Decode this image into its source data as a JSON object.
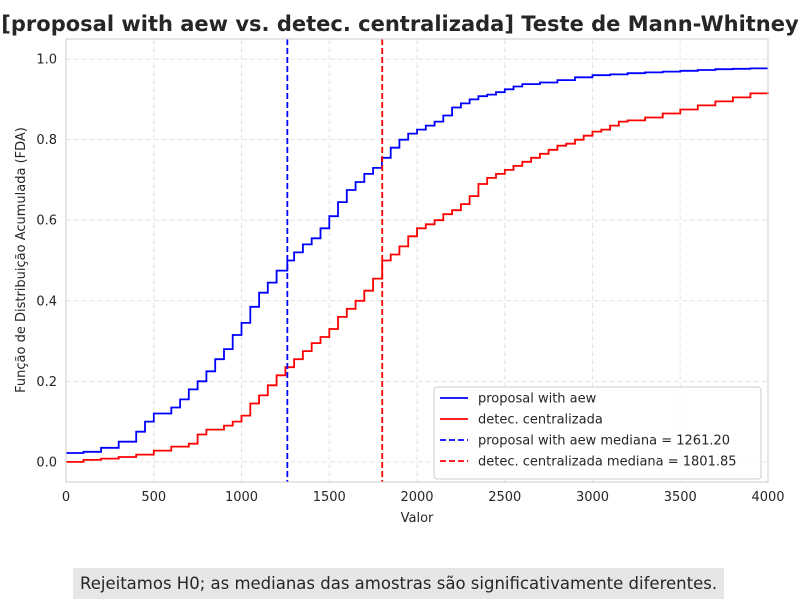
{
  "chart_data": {
    "type": "line",
    "title": "[proposal with aew vs. detec. centralizada] Teste de Mann-Whitney",
    "xlabel": "Valor",
    "ylabel": "Função de Distribuição Acumulada (FDA)",
    "xlim": [
      0,
      4000
    ],
    "ylim": [
      -0.05,
      1.05
    ],
    "x_ticks": [
      0,
      500,
      1000,
      1500,
      2000,
      2500,
      3000,
      3500,
      4000
    ],
    "y_ticks": [
      0.0,
      0.2,
      0.4,
      0.6,
      0.8,
      1.0
    ],
    "x_tick_labels": [
      "0",
      "500",
      "1000",
      "1500",
      "2000",
      "2500",
      "3000",
      "3500",
      "4000"
    ],
    "y_tick_labels": [
      "0.0",
      "0.2",
      "0.4",
      "0.6",
      "0.8",
      "1.0"
    ],
    "grid": true,
    "legend_position": "bottom-right",
    "series": [
      {
        "name": "proposal with aew",
        "color": "#0000ff",
        "style": "step",
        "x": [
          0,
          100,
          200,
          300,
          400,
          450,
          500,
          600,
          650,
          700,
          750,
          800,
          850,
          900,
          950,
          1000,
          1050,
          1100,
          1150,
          1200,
          1261.2,
          1300,
          1350,
          1400,
          1450,
          1500,
          1550,
          1600,
          1650,
          1700,
          1750,
          1800,
          1850,
          1900,
          1950,
          2000,
          2050,
          2100,
          2150,
          2200,
          2250,
          2300,
          2350,
          2400,
          2450,
          2500,
          2550,
          2600,
          2700,
          2800,
          2900,
          3000,
          3100,
          3200,
          3300,
          3400,
          3500,
          3600,
          3700,
          3800,
          3900,
          4000
        ],
        "y": [
          0.022,
          0.025,
          0.035,
          0.05,
          0.075,
          0.1,
          0.12,
          0.135,
          0.155,
          0.18,
          0.2,
          0.225,
          0.255,
          0.28,
          0.315,
          0.345,
          0.385,
          0.42,
          0.445,
          0.475,
          0.5,
          0.52,
          0.54,
          0.555,
          0.58,
          0.61,
          0.645,
          0.675,
          0.695,
          0.715,
          0.73,
          0.755,
          0.78,
          0.8,
          0.815,
          0.825,
          0.835,
          0.845,
          0.86,
          0.88,
          0.89,
          0.9,
          0.908,
          0.912,
          0.918,
          0.925,
          0.932,
          0.938,
          0.942,
          0.948,
          0.955,
          0.96,
          0.962,
          0.965,
          0.967,
          0.969,
          0.971,
          0.973,
          0.975,
          0.976,
          0.977,
          0.977
        ]
      },
      {
        "name": "detec. centralizada",
        "color": "#ff0000",
        "style": "step",
        "x": [
          0,
          100,
          200,
          300,
          400,
          500,
          600,
          700,
          750,
          800,
          900,
          950,
          1000,
          1050,
          1100,
          1150,
          1200,
          1250,
          1300,
          1350,
          1400,
          1450,
          1500,
          1550,
          1600,
          1650,
          1700,
          1750,
          1801.85,
          1850,
          1900,
          1950,
          2000,
          2050,
          2100,
          2150,
          2200,
          2250,
          2300,
          2350,
          2400,
          2450,
          2500,
          2550,
          2600,
          2650,
          2700,
          2750,
          2800,
          2850,
          2900,
          2950,
          3000,
          3050,
          3100,
          3150,
          3200,
          3300,
          3400,
          3500,
          3600,
          3700,
          3800,
          3900,
          4000
        ],
        "y": [
          0.0,
          0.005,
          0.008,
          0.012,
          0.018,
          0.028,
          0.038,
          0.045,
          0.068,
          0.08,
          0.09,
          0.1,
          0.115,
          0.145,
          0.165,
          0.19,
          0.215,
          0.235,
          0.255,
          0.275,
          0.295,
          0.31,
          0.33,
          0.36,
          0.38,
          0.4,
          0.425,
          0.455,
          0.5,
          0.515,
          0.535,
          0.56,
          0.58,
          0.59,
          0.6,
          0.615,
          0.625,
          0.64,
          0.66,
          0.69,
          0.705,
          0.715,
          0.725,
          0.735,
          0.745,
          0.755,
          0.765,
          0.775,
          0.785,
          0.79,
          0.8,
          0.81,
          0.82,
          0.825,
          0.835,
          0.845,
          0.848,
          0.855,
          0.865,
          0.875,
          0.885,
          0.895,
          0.905,
          0.915,
          0.918
        ]
      }
    ],
    "reference_lines": [
      {
        "label": "proposal with aew mediana = 1261.20",
        "x": 1261.2,
        "color": "#0000ff",
        "style": "dashed"
      },
      {
        "label": "detec. centralizada mediana = 1801.85",
        "x": 1801.85,
        "color": "#ff0000",
        "style": "dashed"
      }
    ],
    "legend": [
      {
        "label": "proposal with aew",
        "color": "#0000ff",
        "style": "solid"
      },
      {
        "label": "detec. centralizada",
        "color": "#ff0000",
        "style": "solid"
      },
      {
        "label": "proposal with aew mediana = 1261.20",
        "color": "#0000ff",
        "style": "dashed"
      },
      {
        "label": "detec. centralizada mediana = 1801.85",
        "color": "#ff0000",
        "style": "dashed"
      }
    ]
  },
  "footnote": "Rejeitamos H0; as medianas das amostras são significativamente diferentes."
}
